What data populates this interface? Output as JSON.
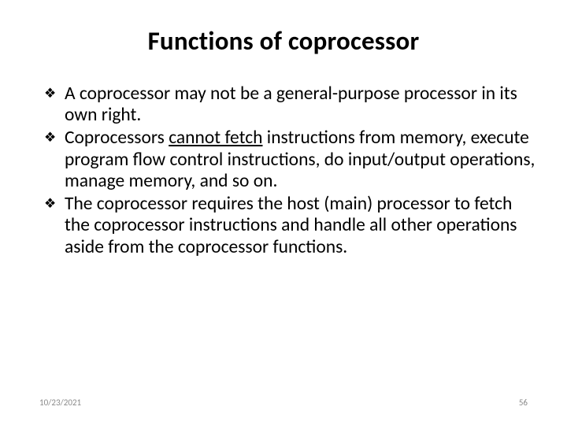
{
  "slide": {
    "title": "Functions of coprocessor",
    "title_fontsize": 33,
    "title_fontweight": 700,
    "body_fontsize": 23.5,
    "body_color": "#000000",
    "background_color": "#ffffff",
    "bullet_glyph": "❖",
    "bullet_color": "#000000",
    "bullets": [
      {
        "pre": "A coprocessor may not be a general-purpose processor in its own right.",
        "underline": "",
        "post": ""
      },
      {
        "pre": " Coprocessors ",
        "underline": "cannot fetch",
        "post": " instructions from memory, execute program flow control instructions, do input/output operations, manage memory, and so on."
      },
      {
        "pre": "The coprocessor requires the host (main) processor to fetch the coprocessor instructions and handle all other operations aside from the coprocessor functions.",
        "underline": "",
        "post": ""
      }
    ]
  },
  "footer": {
    "date": "10/23/2021",
    "page": "56",
    "color": "#8a8a8a",
    "fontsize": 11
  }
}
